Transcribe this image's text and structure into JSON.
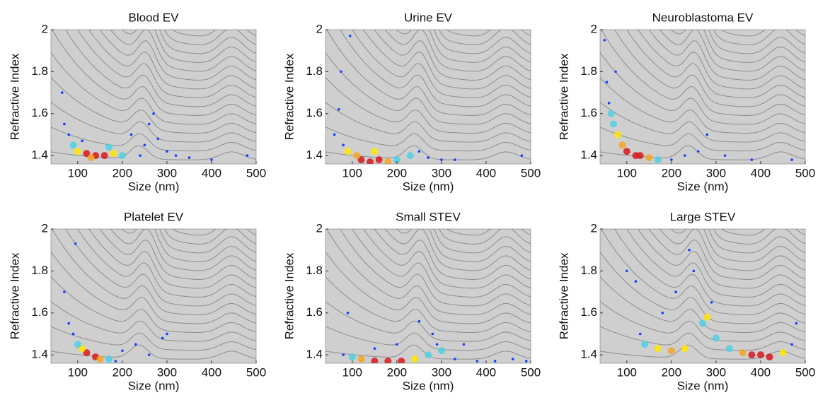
{
  "chart_data": [
    {
      "type": "scatter",
      "title": "Blood EV",
      "x_label": "Size (nm)",
      "y_label": "Refractive Index",
      "xlim": [
        40,
        500
      ],
      "ylim": [
        1.36,
        2
      ],
      "xticks": [
        100,
        200,
        300,
        400,
        500
      ],
      "yticks": [
        1.4,
        1.6,
        1.8,
        2
      ],
      "x": [
        120,
        140,
        160,
        130,
        100,
        180,
        90,
        200,
        70,
        65,
        80,
        220,
        250,
        260,
        270,
        280,
        300,
        320,
        350,
        400,
        480,
        240,
        110,
        170
      ],
      "y": [
        1.41,
        1.4,
        1.4,
        1.39,
        1.42,
        1.41,
        1.45,
        1.4,
        1.55,
        1.7,
        1.5,
        1.5,
        1.45,
        1.55,
        1.6,
        1.48,
        1.42,
        1.4,
        1.39,
        1.38,
        1.4,
        1.4,
        1.47,
        1.44
      ],
      "colors": [
        "#d7191c",
        "#d7191c",
        "#d7191c",
        "#f5a623",
        "#ffe600",
        "#ffe600",
        "#4fd0e0",
        "#4fd0e0",
        "#1a3cff",
        "#1a3cff",
        "#1a3cff",
        "#1a3cff",
        "#1a3cff",
        "#1a3cff",
        "#1a3cff",
        "#1a3cff",
        "#1a3cff",
        "#1a3cff",
        "#1a3cff",
        "#1a3cff",
        "#1a3cff",
        "#1a3cff",
        "#1a3cff",
        "#4fd0e0"
      ]
    },
    {
      "type": "scatter",
      "title": "Urine EV",
      "x_label": "Size (nm)",
      "y_label": "Refractive Index",
      "xlim": [
        40,
        500
      ],
      "ylim": [
        1.36,
        2
      ],
      "xticks": [
        100,
        200,
        300,
        400,
        500
      ],
      "yticks": [
        1.4,
        1.6,
        1.8,
        2
      ],
      "x": [
        120,
        140,
        160,
        110,
        180,
        90,
        200,
        230,
        80,
        70,
        75,
        95,
        250,
        270,
        300,
        330,
        480,
        60,
        150
      ],
      "y": [
        1.38,
        1.37,
        1.38,
        1.4,
        1.37,
        1.42,
        1.38,
        1.4,
        1.45,
        1.62,
        1.8,
        1.97,
        1.42,
        1.39,
        1.38,
        1.38,
        1.4,
        1.5,
        1.42
      ],
      "colors": [
        "#d7191c",
        "#d7191c",
        "#d7191c",
        "#f5a623",
        "#f5a623",
        "#ffe600",
        "#4fd0e0",
        "#4fd0e0",
        "#1a3cff",
        "#1a3cff",
        "#1a3cff",
        "#1a3cff",
        "#1a3cff",
        "#1a3cff",
        "#1a3cff",
        "#1a3cff",
        "#1a3cff",
        "#1a3cff",
        "#ffe600"
      ]
    },
    {
      "type": "scatter",
      "title": "Neuroblastoma EV",
      "x_label": "Size (nm)",
      "y_label": "Refractive Index",
      "xlim": [
        40,
        500
      ],
      "ylim": [
        1.36,
        2
      ],
      "xticks": [
        100,
        200,
        300,
        400,
        500
      ],
      "yticks": [
        1.4,
        1.6,
        1.8,
        2
      ],
      "x": [
        100,
        120,
        130,
        90,
        80,
        150,
        70,
        170,
        60,
        55,
        50,
        75,
        200,
        230,
        260,
        280,
        320,
        380,
        470,
        65
      ],
      "y": [
        1.42,
        1.4,
        1.4,
        1.45,
        1.5,
        1.39,
        1.55,
        1.38,
        1.65,
        1.75,
        1.95,
        1.8,
        1.38,
        1.4,
        1.42,
        1.5,
        1.4,
        1.38,
        1.38,
        1.6
      ],
      "colors": [
        "#d7191c",
        "#d7191c",
        "#d7191c",
        "#f5a623",
        "#ffe600",
        "#f5a623",
        "#4fd0e0",
        "#4fd0e0",
        "#1a3cff",
        "#1a3cff",
        "#1a3cff",
        "#1a3cff",
        "#1a3cff",
        "#1a3cff",
        "#1a3cff",
        "#1a3cff",
        "#1a3cff",
        "#1a3cff",
        "#1a3cff",
        "#4fd0e0"
      ]
    },
    {
      "type": "scatter",
      "title": "Platelet EV",
      "x_label": "Size (nm)",
      "y_label": "Refractive Index",
      "xlim": [
        40,
        500
      ],
      "ylim": [
        1.36,
        2
      ],
      "xticks": [
        100,
        200,
        300,
        400,
        500
      ],
      "yticks": [
        1.4,
        1.6,
        1.8,
        2
      ],
      "x": [
        120,
        140,
        150,
        110,
        100,
        170,
        90,
        80,
        70,
        95,
        200,
        230,
        260,
        290,
        300,
        185
      ],
      "y": [
        1.41,
        1.39,
        1.38,
        1.43,
        1.45,
        1.38,
        1.5,
        1.55,
        1.7,
        1.93,
        1.42,
        1.45,
        1.4,
        1.48,
        1.5,
        1.37
      ],
      "colors": [
        "#d7191c",
        "#d7191c",
        "#f5a623",
        "#ffe600",
        "#4fd0e0",
        "#4fd0e0",
        "#1a3cff",
        "#1a3cff",
        "#1a3cff",
        "#1a3cff",
        "#1a3cff",
        "#1a3cff",
        "#1a3cff",
        "#1a3cff",
        "#1a3cff",
        "#1a3cff"
      ]
    },
    {
      "type": "scatter",
      "title": "Small STEV",
      "x_label": "Size (nm)",
      "y_label": "Refractive Index",
      "xlim": [
        40,
        500
      ],
      "ylim": [
        1.36,
        2
      ],
      "xticks": [
        100,
        200,
        300,
        400,
        500
      ],
      "yticks": [
        1.4,
        1.6,
        1.8,
        2
      ],
      "x": [
        150,
        180,
        210,
        120,
        240,
        100,
        270,
        280,
        290,
        300,
        330,
        380,
        420,
        460,
        490,
        90,
        250,
        200,
        350,
        150,
        80
      ],
      "y": [
        1.37,
        1.37,
        1.37,
        1.38,
        1.38,
        1.39,
        1.4,
        1.5,
        1.45,
        1.42,
        1.38,
        1.37,
        1.37,
        1.38,
        1.37,
        1.6,
        1.56,
        1.45,
        1.45,
        1.43,
        1.4
      ],
      "colors": [
        "#d7191c",
        "#d7191c",
        "#d7191c",
        "#f5a623",
        "#ffe600",
        "#4fd0e0",
        "#4fd0e0",
        "#1a3cff",
        "#1a3cff",
        "#4fd0e0",
        "#1a3cff",
        "#1a3cff",
        "#1a3cff",
        "#1a3cff",
        "#1a3cff",
        "#1a3cff",
        "#1a3cff",
        "#1a3cff",
        "#1a3cff",
        "#1a3cff",
        "#1a3cff"
      ]
    },
    {
      "type": "scatter",
      "title": "Large STEV",
      "x_label": "Size (nm)",
      "y_label": "Refractive Index",
      "xlim": [
        40,
        500
      ],
      "ylim": [
        1.36,
        2
      ],
      "xticks": [
        100,
        200,
        300,
        400,
        500
      ],
      "yticks": [
        1.4,
        1.6,
        1.8,
        2
      ],
      "x": [
        200,
        380,
        400,
        420,
        360,
        230,
        170,
        270,
        280,
        300,
        450,
        140,
        130,
        120,
        100,
        180,
        240,
        250,
        290,
        480,
        470,
        330,
        210
      ],
      "y": [
        1.42,
        1.4,
        1.4,
        1.39,
        1.41,
        1.43,
        1.43,
        1.55,
        1.58,
        1.48,
        1.41,
        1.45,
        1.5,
        1.75,
        1.8,
        1.6,
        1.9,
        1.8,
        1.65,
        1.55,
        1.45,
        1.43,
        1.7
      ],
      "colors": [
        "#f5a623",
        "#d7191c",
        "#d7191c",
        "#d7191c",
        "#f5a623",
        "#ffe600",
        "#ffe600",
        "#4fd0e0",
        "#ffe600",
        "#4fd0e0",
        "#ffe600",
        "#4fd0e0",
        "#1a3cff",
        "#1a3cff",
        "#1a3cff",
        "#1a3cff",
        "#1a3cff",
        "#1a3cff",
        "#1a3cff",
        "#1a3cff",
        "#1a3cff",
        "#4fd0e0",
        "#1a3cff"
      ]
    }
  ]
}
